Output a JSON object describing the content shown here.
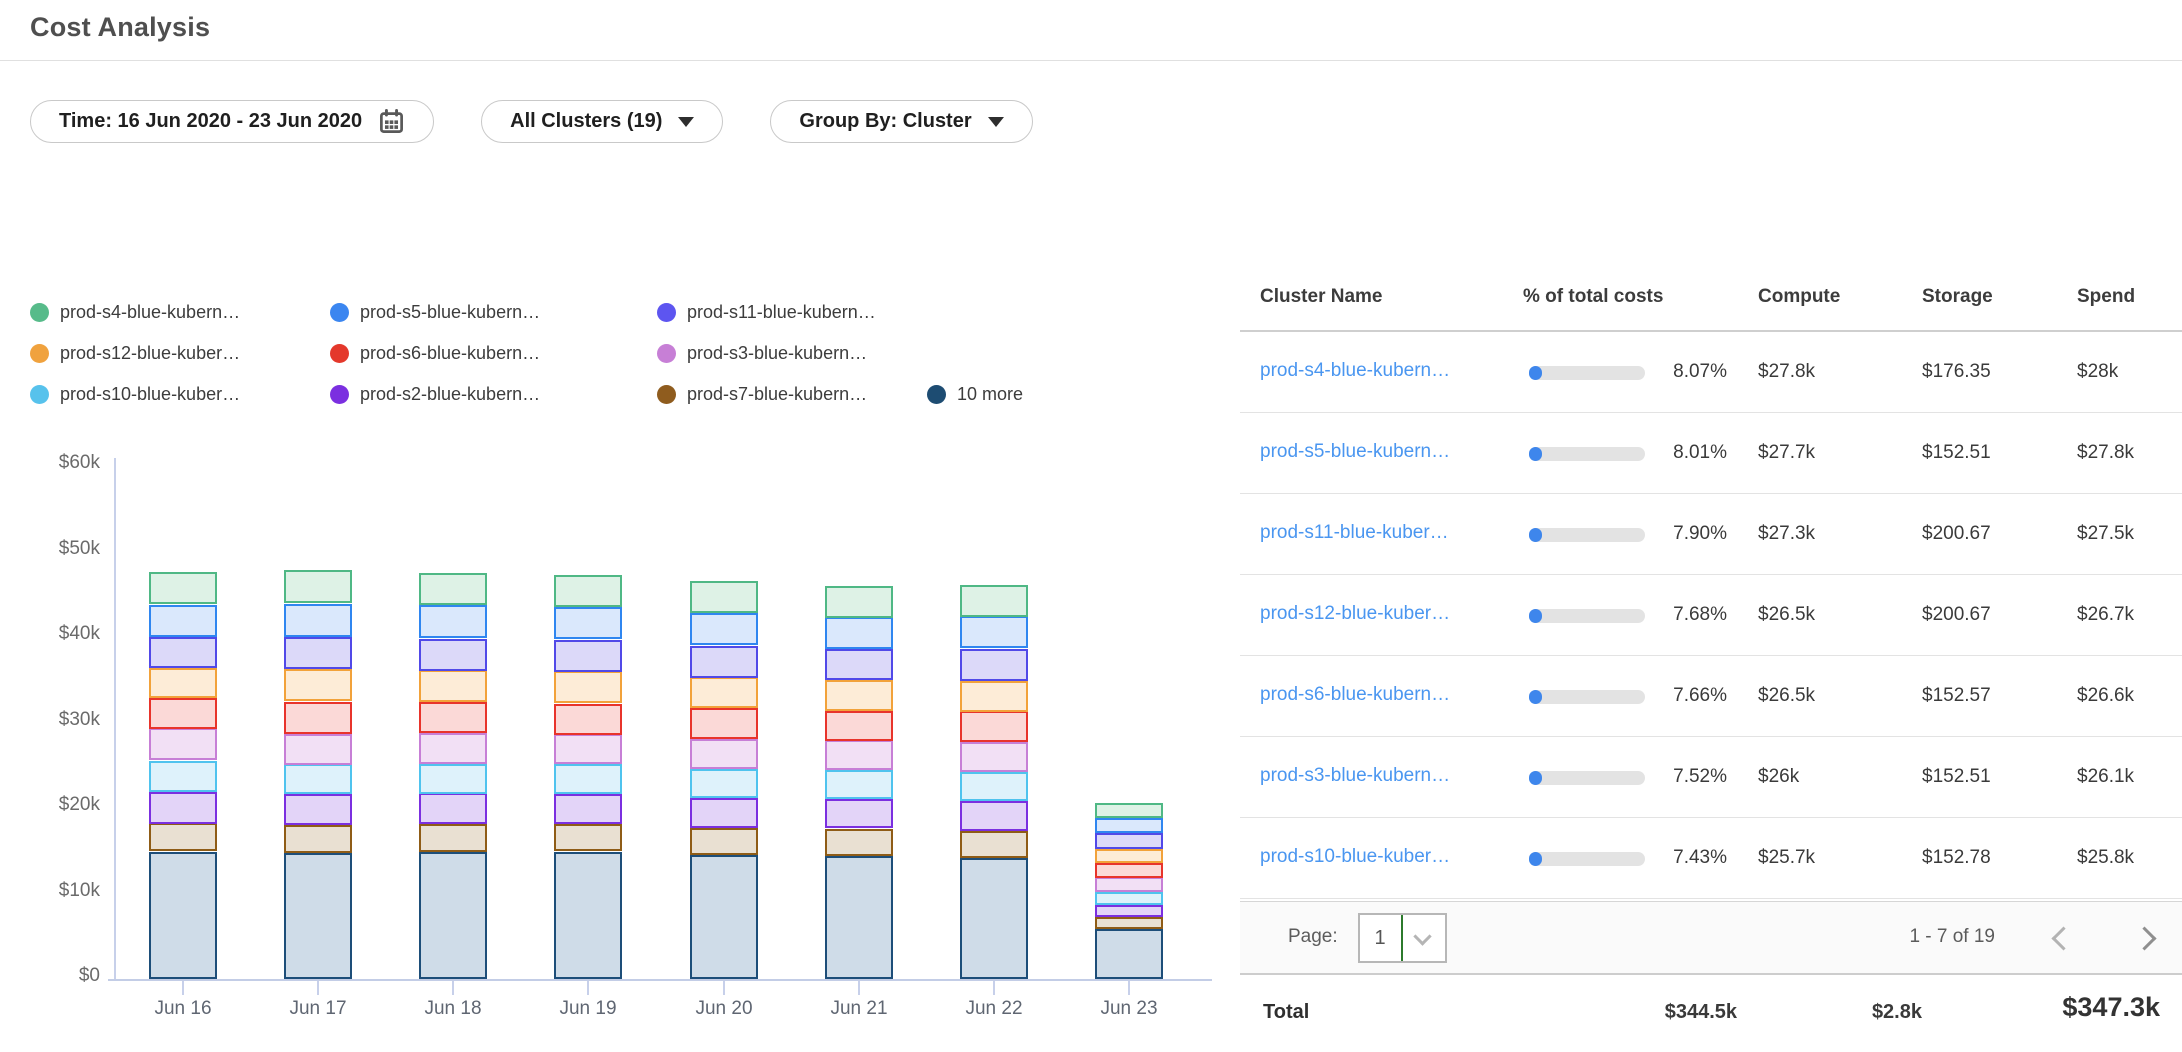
{
  "header": {
    "title": "Cost Analysis"
  },
  "filters": {
    "time_label": "Time: 16 Jun 2020 - 23 Jun 2020",
    "calendar_icon": "calendar-icon",
    "clusters_label": "All Clusters (19)",
    "group_by_label": "Group By: Cluster"
  },
  "legend": [
    {
      "label": "prod-s4-blue-kubern…",
      "color": "#57bb8a"
    },
    {
      "label": "prod-s5-blue-kubern…",
      "color": "#3b86f0"
    },
    {
      "label": "prod-s11-blue-kubern…",
      "color": "#5d55f0"
    },
    {
      "label": "prod-s12-blue-kuber…",
      "color": "#f0a23e"
    },
    {
      "label": "prod-s6-blue-kubern…",
      "color": "#e4382b"
    },
    {
      "label": "prod-s3-blue-kubern…",
      "color": "#c77fd6"
    },
    {
      "label": "prod-s10-blue-kuber…",
      "color": "#57c2ec"
    },
    {
      "label": "prod-s2-blue-kubern…",
      "color": "#7b2fe0"
    },
    {
      "label": "prod-s7-blue-kubern…",
      "color": "#8f5c1e"
    },
    {
      "label": "10 more",
      "color": "#1d4c72"
    }
  ],
  "chart_data": {
    "type": "bar",
    "stacked": true,
    "x": [
      "Jun 16",
      "Jun 17",
      "Jun 18",
      "Jun 19",
      "Jun 20",
      "Jun 21",
      "Jun 22",
      "Jun 23"
    ],
    "y_ticks": [
      "$0",
      "$10k",
      "$20k",
      "$30k",
      "$40k",
      "$50k",
      "$60k"
    ],
    "ylim": [
      0,
      60000
    ],
    "grid": false,
    "legend_position": "top",
    "series": [
      {
        "name": "10 more",
        "stroke": "#1d4e79",
        "fill": "#cfdce8",
        "values": [
          14900,
          14700,
          14800,
          14900,
          14500,
          14400,
          14100,
          5900
        ]
      },
      {
        "name": "prod-s7-blue-kubern…",
        "stroke": "#8f5c16",
        "fill": "#e9e0d2",
        "values": [
          3300,
          3300,
          3300,
          3200,
          3200,
          3200,
          3200,
          1400
        ]
      },
      {
        "name": "prod-s2-blue-kubern…",
        "stroke": "#7b2fe0",
        "fill": "#e3d4f8",
        "values": [
          3700,
          3600,
          3600,
          3500,
          3500,
          3400,
          3500,
          1400
        ]
      },
      {
        "name": "prod-s10-blue-kuber…",
        "stroke": "#4fc3ee",
        "fill": "#def2fb",
        "values": [
          3600,
          3500,
          3500,
          3500,
          3400,
          3400,
          3400,
          1500
        ]
      },
      {
        "name": "prod-s3-blue-kubern…",
        "stroke": "#c77fd6",
        "fill": "#f2e0f5",
        "values": [
          3800,
          3600,
          3600,
          3500,
          3500,
          3500,
          3500,
          1700
        ]
      },
      {
        "name": "prod-s6-blue-kubern…",
        "stroke": "#e8342b",
        "fill": "#fbd9d7",
        "values": [
          3600,
          3700,
          3600,
          3600,
          3600,
          3500,
          3600,
          1700
        ]
      },
      {
        "name": "prod-s12-blue-kuber…",
        "stroke": "#f2a23a",
        "fill": "#fdecd7",
        "values": [
          3500,
          3800,
          3700,
          3800,
          3600,
          3600,
          3600,
          1600
        ]
      },
      {
        "name": "prod-s11-blue-kubern…",
        "stroke": "#5149e8",
        "fill": "#dcd9f9",
        "values": [
          3600,
          3800,
          3700,
          3700,
          3700,
          3600,
          3700,
          1900
        ]
      },
      {
        "name": "prod-s5-blue-kubern…",
        "stroke": "#2f86f0",
        "fill": "#dae8fc",
        "values": [
          3800,
          3900,
          3900,
          3800,
          3800,
          3700,
          3800,
          1700
        ]
      },
      {
        "name": "prod-s4-blue-kubern…",
        "stroke": "#4fb885",
        "fill": "#def2e6",
        "values": [
          3800,
          3900,
          3800,
          3800,
          3700,
          3700,
          3700,
          1800
        ]
      }
    ]
  },
  "table": {
    "columns": [
      "Cluster Name",
      "% of total costs",
      "Compute",
      "Storage",
      "Spend"
    ],
    "rows": [
      {
        "name": "prod-s4-blue-kubern…",
        "pct": "8.07%",
        "pct_value": 8.07,
        "compute": "$27.8k",
        "storage": "$176.35",
        "spend": "$28k"
      },
      {
        "name": "prod-s5-blue-kubern…",
        "pct": "8.01%",
        "pct_value": 8.01,
        "compute": "$27.7k",
        "storage": "$152.51",
        "spend": "$27.8k"
      },
      {
        "name": "prod-s11-blue-kuber…",
        "pct": "7.90%",
        "pct_value": 7.9,
        "compute": "$27.3k",
        "storage": "$200.67",
        "spend": "$27.5k"
      },
      {
        "name": "prod-s12-blue-kuber…",
        "pct": "7.68%",
        "pct_value": 7.68,
        "compute": "$26.5k",
        "storage": "$200.67",
        "spend": "$26.7k"
      },
      {
        "name": "prod-s6-blue-kubern…",
        "pct": "7.66%",
        "pct_value": 7.66,
        "compute": "$26.5k",
        "storage": "$152.57",
        "spend": "$26.6k"
      },
      {
        "name": "prod-s3-blue-kubern…",
        "pct": "7.52%",
        "pct_value": 7.52,
        "compute": "$26k",
        "storage": "$152.51",
        "spend": "$26.1k"
      },
      {
        "name": "prod-s10-blue-kuber…",
        "pct": "7.43%",
        "pct_value": 7.43,
        "compute": "$25.7k",
        "storage": "$152.78",
        "spend": "$25.8k"
      }
    ],
    "pagination": {
      "page_label": "Page:",
      "page": "1",
      "range": "1 - 7 of 19"
    },
    "total": {
      "label": "Total",
      "compute": "$344.5k",
      "storage": "$2.8k",
      "spend": "$347.3k"
    }
  },
  "colors": {
    "link": "#4a96f0",
    "progress_fill": "#3e86ec",
    "progress_track": "#e3e3e3",
    "axis": "#c7d0ea",
    "select_accent": "#2c7a2c"
  }
}
